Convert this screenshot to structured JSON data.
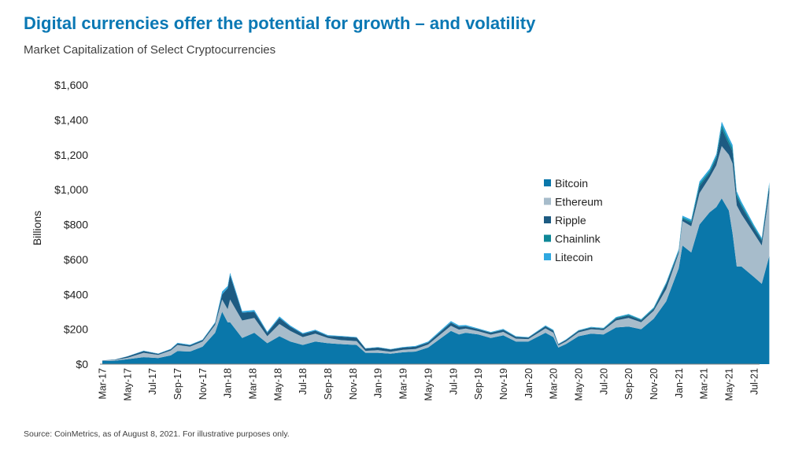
{
  "title": "Digital currencies offer the potential for growth – and volatility",
  "subtitle": "Market Capitalization of Select Cryptocurrencies",
  "source": "Source: CoinMetrics, as of August 8, 2021. For illustrative purposes only.",
  "chart_data": {
    "type": "area",
    "stacked": true,
    "ylabel": "Billions",
    "ylim": [
      0,
      1600
    ],
    "yticks": [
      0,
      200,
      400,
      600,
      800,
      1000,
      1200,
      1400,
      1600
    ],
    "ytick_labels": [
      "$0",
      "$200",
      "$400",
      "$600",
      "$800",
      "$1,000",
      "$1,200",
      "$1,400",
      "$1,600"
    ],
    "xtick_labels": [
      "Mar-17",
      "May-17",
      "Jul-17",
      "Sep-17",
      "Nov-17",
      "Jan-18",
      "Mar-18",
      "May-18",
      "Jul-18",
      "Sep-18",
      "Nov-18",
      "Jan-19",
      "Mar-19",
      "May-19",
      "Jul-19",
      "Sep-19",
      "Nov-19",
      "Jan-20",
      "Mar-20",
      "May-20",
      "Jul-20",
      "Sep-20",
      "Nov-20",
      "Jan-21",
      "Mar-21",
      "May-21",
      "Jul-21"
    ],
    "legend_position": "right-center",
    "grid": false,
    "x": [
      "2017-03-01",
      "2017-04-01",
      "2017-05-01",
      "2017-06-10",
      "2017-07-15",
      "2017-08-15",
      "2017-09-01",
      "2017-10-01",
      "2017-11-01",
      "2017-12-01",
      "2017-12-18",
      "2018-01-01",
      "2018-01-07",
      "2018-02-06",
      "2018-03-05",
      "2018-04-06",
      "2018-05-05",
      "2018-06-01",
      "2018-07-01",
      "2018-08-01",
      "2018-09-01",
      "2018-10-01",
      "2018-11-10",
      "2018-12-01",
      "2019-01-01",
      "2019-02-01",
      "2019-03-01",
      "2019-04-01",
      "2019-05-01",
      "2019-06-26",
      "2019-07-15",
      "2019-08-01",
      "2019-09-01",
      "2019-10-01",
      "2019-11-01",
      "2019-12-01",
      "2020-01-01",
      "2020-02-12",
      "2020-03-01",
      "2020-03-13",
      "2020-04-01",
      "2020-05-01",
      "2020-06-01",
      "2020-07-01",
      "2020-08-01",
      "2020-09-01",
      "2020-10-01",
      "2020-11-01",
      "2020-12-01",
      "2021-01-01",
      "2021-01-10",
      "2021-02-01",
      "2021-02-21",
      "2021-03-15",
      "2021-04-01",
      "2021-04-14",
      "2021-05-01",
      "2021-05-10",
      "2021-05-20",
      "2021-06-01",
      "2021-07-01",
      "2021-07-20",
      "2021-08-08"
    ],
    "series": [
      {
        "name": "Bitcoin",
        "color": "#0a77aa",
        "values": [
          18,
          20,
          28,
          40,
          35,
          50,
          75,
          72,
          100,
          180,
          300,
          240,
          240,
          150,
          180,
          120,
          160,
          130,
          110,
          130,
          120,
          115,
          110,
          65,
          65,
          60,
          68,
          72,
          95,
          190,
          170,
          180,
          170,
          150,
          165,
          130,
          130,
          180,
          155,
          95,
          115,
          160,
          175,
          170,
          210,
          215,
          200,
          260,
          360,
          550,
          680,
          640,
          800,
          870,
          900,
          950,
          880,
          750,
          560,
          560,
          500,
          460,
          620
        ]
      },
      {
        "name": "Ethereum",
        "color": "#a7bccb",
        "values": [
          2,
          4,
          8,
          25,
          18,
          28,
          35,
          28,
          30,
          45,
          70,
          75,
          130,
          100,
          85,
          40,
          70,
          60,
          45,
          45,
          30,
          23,
          22,
          11,
          15,
          11,
          14,
          15,
          17,
          30,
          28,
          24,
          19,
          19,
          20,
          16,
          14,
          25,
          25,
          12,
          15,
          22,
          25,
          25,
          40,
          50,
          40,
          45,
          70,
          85,
          140,
          150,
          180,
          200,
          240,
          300,
          320,
          400,
          350,
          300,
          250,
          220,
          360
        ]
      },
      {
        "name": "Ripple",
        "color": "#1d5b82",
        "values": [
          1,
          2,
          8,
          10,
          6,
          7,
          8,
          8,
          8,
          10,
          30,
          120,
          140,
          45,
          35,
          20,
          35,
          25,
          18,
          17,
          12,
          20,
          20,
          13,
          15,
          13,
          13,
          13,
          12,
          18,
          16,
          13,
          11,
          11,
          12,
          10,
          8,
          12,
          11,
          7,
          8,
          9,
          9,
          8,
          12,
          13,
          11,
          11,
          28,
          11,
          13,
          20,
          40,
          25,
          40,
          100,
          60,
          70,
          50,
          45,
          30,
          28,
          40
        ]
      },
      {
        "name": "Chainlink",
        "color": "#0e8797",
        "values": [
          0,
          0,
          0,
          0,
          0,
          0,
          0,
          0.1,
          0.1,
          0.2,
          0.3,
          0.5,
          1,
          0.3,
          0.2,
          0.2,
          0.3,
          0.2,
          0.2,
          0.2,
          0.2,
          0.2,
          0.2,
          0.2,
          0.2,
          0.2,
          0.3,
          0.3,
          0.3,
          1.2,
          1,
          0.8,
          0.7,
          1,
          1,
          1,
          0.6,
          1.2,
          1.5,
          0.7,
          1,
          1.3,
          1.5,
          2,
          4,
          5.5,
          4,
          5,
          5,
          5,
          8,
          9,
          14,
          12,
          12,
          20,
          20,
          18,
          15,
          12,
          9,
          7,
          12
        ]
      },
      {
        "name": "Litecoin",
        "color": "#2fa8e0",
        "values": [
          0.2,
          0.5,
          1,
          2,
          2,
          2.5,
          4,
          3,
          3,
          5,
          16,
          12,
          13,
          8,
          10,
          6,
          8,
          6,
          5,
          5,
          4,
          3.5,
          3,
          2,
          2,
          2,
          3,
          4,
          5,
          8,
          7,
          6,
          4,
          3.5,
          4,
          3,
          2.5,
          4,
          4,
          2,
          2.5,
          3,
          3,
          3,
          4,
          4,
          3,
          4,
          6,
          8,
          10,
          9,
          13,
          12,
          12,
          20,
          20,
          18,
          15,
          14,
          10,
          8,
          11
        ]
      }
    ]
  }
}
